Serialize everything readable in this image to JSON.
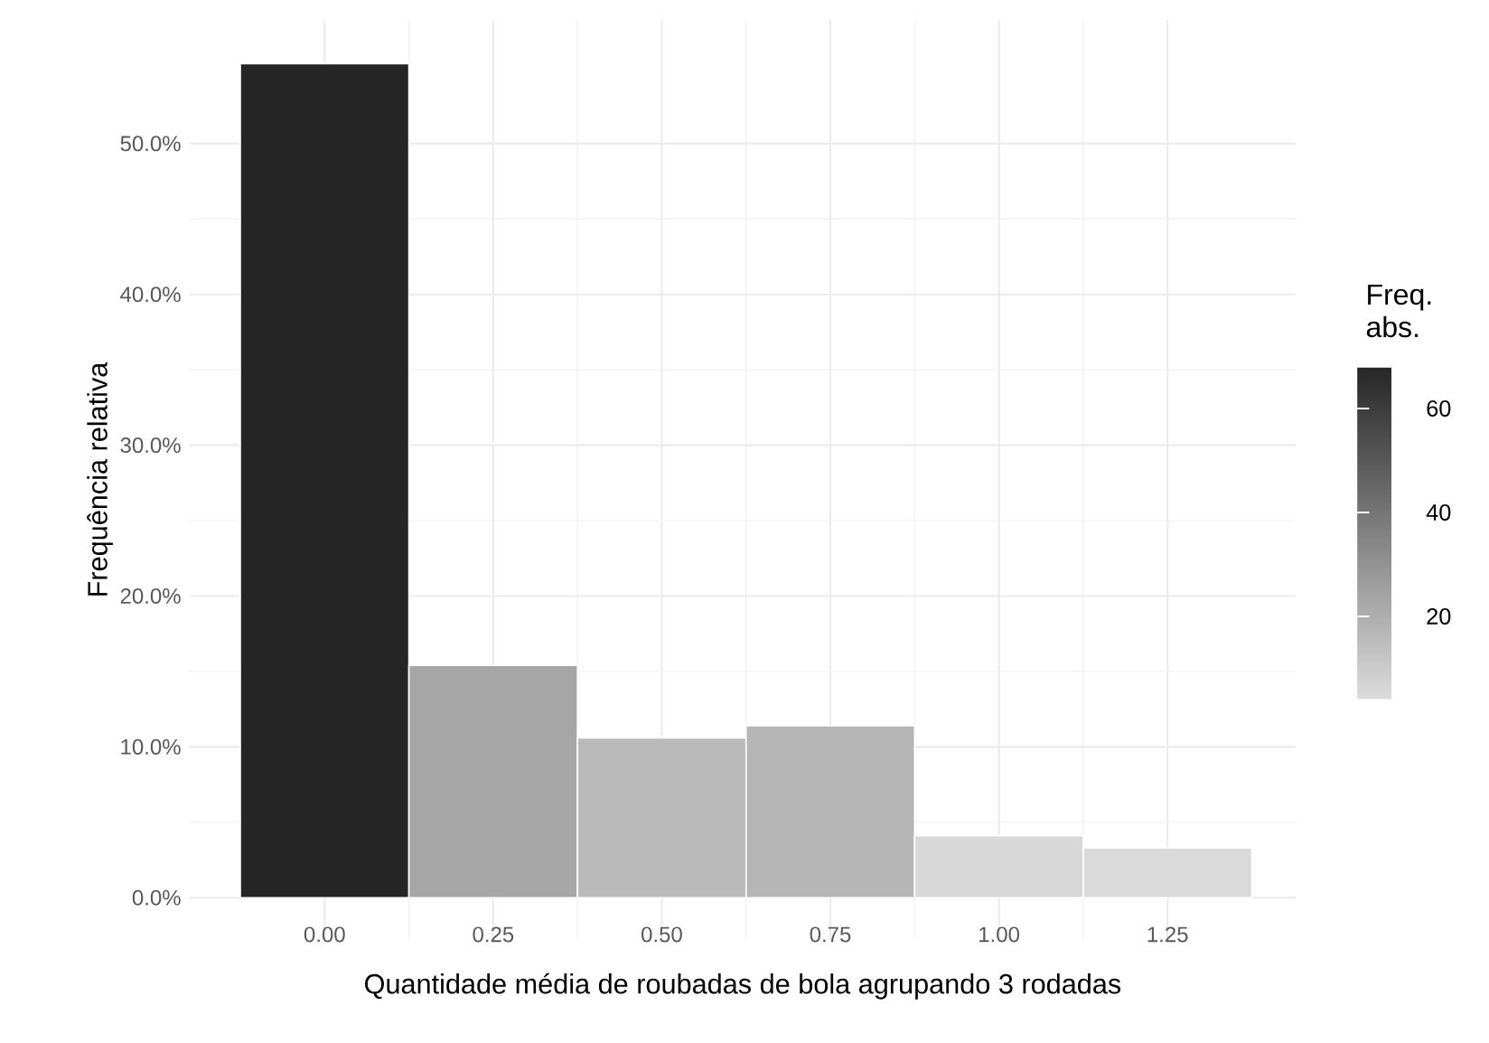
{
  "chart_data": {
    "type": "histogram",
    "xlabel": "Quantidade média de roubadas de bola agrupando 3 rodadas",
    "ylabel": "Frequência relativa",
    "clabel": "Freq. abs.",
    "bins": [
      -0.125,
      0.125,
      0.375,
      0.625,
      0.875,
      1.125,
      1.375
    ],
    "values": [
      55.3,
      15.4,
      10.6,
      11.4,
      4.1,
      3.3
    ],
    "colors": [
      "#262626",
      "#a6a6a6",
      "#b9b9b9",
      "#b6b6b6",
      "#d8d8d8",
      "#dadada"
    ],
    "xlim": [
      -0.2,
      1.44
    ],
    "ylim": [
      -2.8,
      58.2
    ],
    "xticks": [
      {
        "value": 0,
        "label": "0.00"
      },
      {
        "value": 0.25,
        "label": "0.25"
      },
      {
        "value": 0.5,
        "label": "0.50"
      },
      {
        "value": 0.75,
        "label": "0.75"
      },
      {
        "value": 1,
        "label": "1.00"
      },
      {
        "value": 1.25,
        "label": "1.25"
      }
    ],
    "yticks": [
      {
        "value": 0,
        "label": "0.0%"
      },
      {
        "value": 10,
        "label": "10.0%"
      },
      {
        "value": 20,
        "label": "20.0%"
      },
      {
        "value": 30,
        "label": "30.0%"
      },
      {
        "value": 40,
        "label": "40.0%"
      },
      {
        "value": 50,
        "label": "50.0%"
      }
    ],
    "clim": [
      4,
      68
    ],
    "cticks": [
      20,
      40,
      60
    ],
    "grid": true
  }
}
